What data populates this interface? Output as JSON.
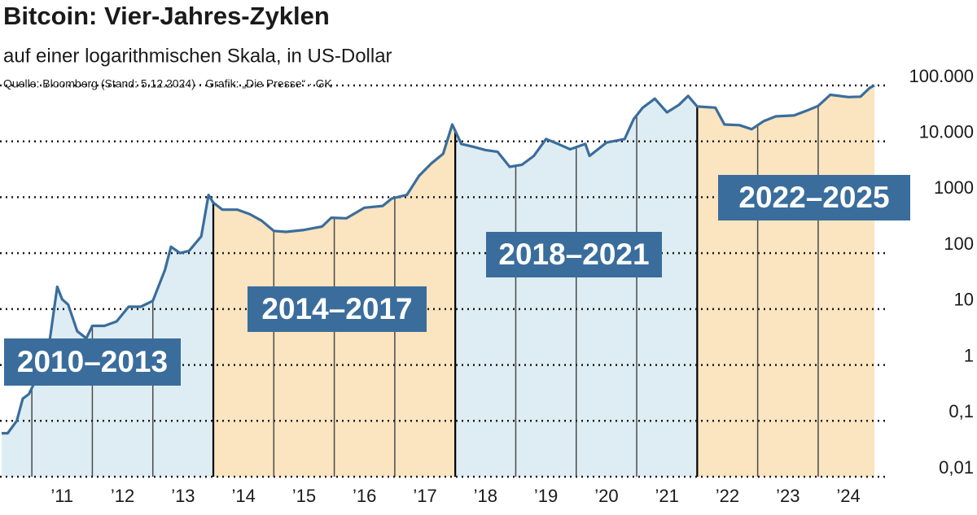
{
  "chart_data": {
    "type": "line",
    "title": "Bitcoin: Vier-Jahres-Zyklen",
    "subtitle": "auf einer logarithmischen Skala, in US-Dollar",
    "source": "Quelle: Bloomberg (Stand: 5.12.2024) · Grafik: „Die Presse“ · GK",
    "color": "#3a6d9c",
    "log_y": true,
    "grid": true,
    "x": [
      2010.5,
      2010.6,
      2010.75,
      2010.85,
      2010.95,
      2011.05,
      2011.15,
      2011.3,
      2011.42,
      2011.5,
      2011.6,
      2011.75,
      2011.9,
      2012.0,
      2012.2,
      2012.4,
      2012.6,
      2012.8,
      2013.0,
      2013.2,
      2013.3,
      2013.45,
      2013.6,
      2013.8,
      2013.92,
      2014.0,
      2014.15,
      2014.4,
      2014.6,
      2014.8,
      2015.0,
      2015.2,
      2015.5,
      2015.8,
      2015.95,
      2016.2,
      2016.5,
      2016.8,
      2016.95,
      2017.2,
      2017.4,
      2017.6,
      2017.8,
      2017.95,
      2018.1,
      2018.3,
      2018.5,
      2018.7,
      2018.9,
      2019.1,
      2019.3,
      2019.5,
      2019.7,
      2019.9,
      2020.15,
      2020.22,
      2020.5,
      2020.8,
      2020.95,
      2021.1,
      2021.3,
      2021.5,
      2021.7,
      2021.85,
      2022.0,
      2022.3,
      2022.45,
      2022.7,
      2022.9,
      2023.1,
      2023.3,
      2023.6,
      2023.8,
      2024.0,
      2024.2,
      2024.5,
      2024.7,
      2024.85,
      2024.93
    ],
    "values": [
      0.06,
      0.06,
      0.1,
      0.25,
      0.3,
      0.5,
      1,
      3,
      25,
      15,
      12,
      4,
      3,
      5,
      5,
      6,
      11,
      11,
      14,
      50,
      130,
      100,
      110,
      200,
      1100,
      800,
      600,
      600,
      500,
      380,
      250,
      240,
      260,
      300,
      430,
      420,
      650,
      700,
      950,
      1100,
      2400,
      4000,
      6000,
      20000,
      9000,
      8000,
      7000,
      6500,
      3500,
      3800,
      5500,
      11000,
      9000,
      7200,
      9000,
      5500,
      9500,
      11000,
      25000,
      40000,
      58000,
      33000,
      45000,
      65000,
      42000,
      40000,
      20000,
      19500,
      16500,
      23000,
      28000,
      29000,
      35000,
      43000,
      68000,
      62000,
      63000,
      90000,
      100000
    ],
    "xlim": [
      2010.5,
      2024.93
    ],
    "ylim": [
      0.01,
      100000
    ],
    "yticks": [
      {
        "value": 100000,
        "label": "100.000"
      },
      {
        "value": 10000,
        "label": "10.000"
      },
      1000,
      100,
      10,
      1,
      {
        "value": 0.1,
        "label": "0,1"
      },
      {
        "value": 0.01,
        "label": "0,01"
      }
    ],
    "xticks": [
      {
        "value": 2011.5,
        "label": "’11"
      },
      {
        "value": 2012.5,
        "label": "’12"
      },
      {
        "value": 2013.5,
        "label": "’13"
      },
      {
        "value": 2014.5,
        "label": "’14"
      },
      {
        "value": 2015.5,
        "label": "’15"
      },
      {
        "value": 2016.5,
        "label": "’16"
      },
      {
        "value": 2017.5,
        "label": "’17"
      },
      {
        "value": 2018.5,
        "label": "’18"
      },
      {
        "value": 2019.5,
        "label": "’19"
      },
      {
        "value": 2020.5,
        "label": "’20"
      },
      {
        "value": 2021.5,
        "label": "’21"
      },
      {
        "value": 2022.5,
        "label": "’22"
      },
      {
        "value": 2023.5,
        "label": "’23"
      },
      {
        "value": 2024.5,
        "label": "’24"
      }
    ],
    "xgrid": [
      2011,
      2012,
      2013,
      2014,
      2015,
      2016,
      2017,
      2018,
      2019,
      2020,
      2021,
      2022,
      2023,
      2024
    ],
    "periods": [
      {
        "label": "2010–2013",
        "start": 2010.5,
        "end": 2014,
        "color": "#deedf3"
      },
      {
        "label": "2014–2017",
        "start": 2014,
        "end": 2018,
        "color": "#fbe4c0"
      },
      {
        "label": "2018–2021",
        "start": 2018,
        "end": 2022,
        "color": "#deedf3"
      },
      {
        "label": "2022–2025",
        "start": 2022,
        "end": 2024.93,
        "color": "#fbe4c0"
      }
    ]
  }
}
